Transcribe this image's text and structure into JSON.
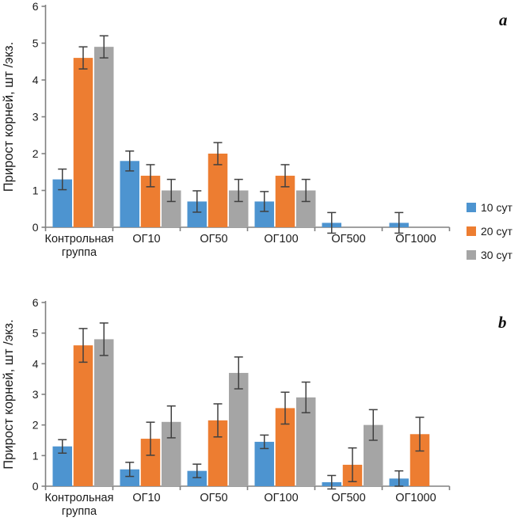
{
  "figure": {
    "background": "#ffffff",
    "axis_color": "#808080",
    "error_bar_color": "#404040",
    "text_color": "#1a1a1a"
  },
  "legend": {
    "position": "right",
    "items": [
      {
        "label": "10 сут",
        "color": "#4D94D0"
      },
      {
        "label": "20 сут",
        "color": "#ED7D31"
      },
      {
        "label": "30 сут",
        "color": "#A5A5A5"
      }
    ]
  },
  "chart_data": [
    {
      "type": "bar",
      "panel_label": "a",
      "title": "",
      "xlabel": "",
      "ylabel": "Прирост корней, шт /экз.",
      "ylim": [
        0,
        6
      ],
      "yticks": [
        0,
        1,
        2,
        3,
        4,
        5,
        6
      ],
      "grid": false,
      "legend_position": "right",
      "categories": [
        "Контрольная группа",
        "ОГ10",
        "ОГ50",
        "ОГ100",
        "ОГ500",
        "ОГ1000"
      ],
      "series": [
        {
          "name": "10 сут",
          "color": "#4D94D0",
          "values": [
            1.3,
            1.8,
            0.7,
            0.7,
            0.12,
            0.12
          ],
          "errors": [
            0.28,
            0.27,
            0.29,
            0.27,
            0.28,
            0.28
          ]
        },
        {
          "name": "20 сут",
          "color": "#ED7D31",
          "values": [
            4.6,
            1.4,
            2.0,
            1.4,
            0,
            0
          ],
          "errors": [
            0.3,
            0.3,
            0.3,
            0.3,
            0,
            0
          ]
        },
        {
          "name": "30 сут",
          "color": "#A5A5A5",
          "values": [
            4.9,
            1.0,
            1.0,
            1.0,
            0,
            0
          ],
          "errors": [
            0.3,
            0.3,
            0.3,
            0.3,
            0,
            0
          ]
        }
      ]
    },
    {
      "type": "bar",
      "panel_label": "b",
      "title": "",
      "xlabel": "",
      "ylabel": "Прирост корней, шт /экз.",
      "ylim": [
        0,
        6
      ],
      "yticks": [
        0,
        1,
        2,
        3,
        4,
        5,
        6
      ],
      "grid": false,
      "legend_position": "right",
      "categories": [
        "Контрольная группа",
        "ОГ10",
        "ОГ50",
        "ОГ100",
        "ОГ500",
        "ОГ1000"
      ],
      "series": [
        {
          "name": "10 сут",
          "color": "#4D94D0",
          "values": [
            1.3,
            0.55,
            0.5,
            1.45,
            0.13,
            0.25
          ],
          "errors": [
            0.22,
            0.23,
            0.22,
            0.22,
            0.22,
            0.25
          ]
        },
        {
          "name": "20 сут",
          "color": "#ED7D31",
          "values": [
            4.6,
            1.55,
            2.15,
            2.55,
            0.7,
            1.7
          ],
          "errors": [
            0.55,
            0.54,
            0.54,
            0.52,
            0.55,
            0.55
          ]
        },
        {
          "name": "30 сут",
          "color": "#A5A5A5",
          "values": [
            4.8,
            2.1,
            3.7,
            2.9,
            2.0,
            0
          ],
          "errors": [
            0.53,
            0.52,
            0.52,
            0.5,
            0.5,
            0
          ]
        }
      ]
    }
  ]
}
